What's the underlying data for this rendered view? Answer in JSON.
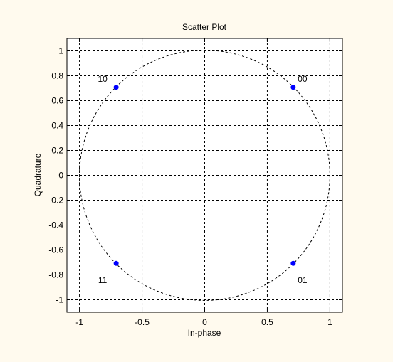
{
  "chart_data": {
    "type": "scatter",
    "title": "Scatter Plot",
    "xlabel": "In-phase",
    "ylabel": "Quadrature",
    "xlim": [
      -1.1,
      1.1
    ],
    "ylim": [
      -1.1,
      1.1
    ],
    "xticks": [
      -1,
      -0.5,
      0,
      0.5,
      1
    ],
    "xtick_labels": [
      "-1",
      "-0.5",
      "0",
      "0.5",
      "1"
    ],
    "yticks": [
      1,
      0.8,
      0.6,
      0.4,
      0.2,
      0,
      -0.2,
      -0.4,
      -0.6,
      -0.8,
      -1
    ],
    "ytick_labels": [
      "1",
      "0.8",
      "0.6",
      "0.4",
      "0.2",
      "0",
      "-0.2",
      "-0.4",
      "-0.6",
      "-0.8",
      "-1"
    ],
    "grid": true,
    "grid_style": "dashed",
    "reference_circle": {
      "center": [
        0,
        0
      ],
      "radius": 1,
      "style": "dashed"
    },
    "points": [
      {
        "x": 0.707,
        "y": 0.707,
        "label": "00"
      },
      {
        "x": 0.707,
        "y": -0.707,
        "label": "01"
      },
      {
        "x": -0.707,
        "y": 0.707,
        "label": "10"
      },
      {
        "x": -0.707,
        "y": -0.707,
        "label": "11"
      }
    ],
    "colors": {
      "background": "#fffaee",
      "plot_background": "#ffffff",
      "marker": "#0000ff",
      "grid": "#000000",
      "axes": "#000000"
    }
  }
}
